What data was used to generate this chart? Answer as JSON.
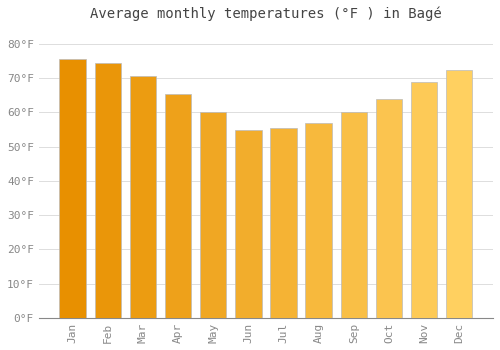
{
  "title": "Average monthly temperatures (°F ) in Bagé",
  "months": [
    "Jan",
    "Feb",
    "Mar",
    "Apr",
    "May",
    "Jun",
    "Jul",
    "Aug",
    "Sep",
    "Oct",
    "Nov",
    "Dec"
  ],
  "values": [
    75.5,
    74.5,
    70.5,
    65.5,
    60.0,
    55.0,
    55.5,
    57.0,
    60.0,
    64.0,
    69.0,
    72.5
  ],
  "bar_color_left": "#E89000",
  "bar_color_right": "#FFD060",
  "bar_edge_color": "#BBBBBB",
  "background_color": "#FFFFFF",
  "grid_color": "#DDDDDD",
  "ytick_labels": [
    "0°F",
    "10°F",
    "20°F",
    "30°F",
    "40°F",
    "50°F",
    "60°F",
    "70°F",
    "80°F"
  ],
  "ytick_values": [
    0,
    10,
    20,
    30,
    40,
    50,
    60,
    70,
    80
  ],
  "ylim": [
    0,
    85
  ],
  "title_fontsize": 10,
  "tick_fontsize": 8,
  "tick_color": "#888888",
  "title_color": "#444444",
  "font_family": "monospace",
  "bar_width": 0.75
}
